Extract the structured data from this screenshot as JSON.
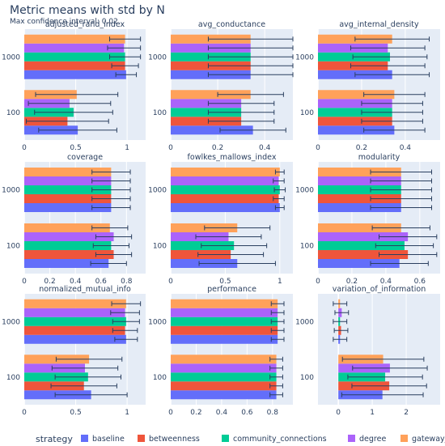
{
  "title": "Metric means with std by N",
  "subtitle": "Max confidence interval: 0.02",
  "legend_title": "strategy",
  "colors": {
    "baseline": "#636efa",
    "betweenness": "#ef553b",
    "community_connections": "#00cc96",
    "degree": "#ab63fa",
    "gateway_probability": "#ffa15a",
    "panel_bg": "#e5ecf6",
    "grid": "#ffffff",
    "text": "#2a3f5f"
  },
  "chart_data": {
    "type": "bar",
    "orientation": "horizontal",
    "categories": [
      "100",
      "1000"
    ],
    "series_names": [
      "baseline",
      "betweenness",
      "community_connections",
      "degree",
      "gateway_probability"
    ],
    "legend_position": "bottom",
    "grid": true,
    "panels": [
      {
        "title": "adjusted_rand_index",
        "xlim": [
          0,
          1.18
        ],
        "xticks": [
          0,
          0.5,
          1
        ],
        "xtick_labels": [
          "0",
          "0.5",
          "1"
        ],
        "values": {
          "100": [
            0.52,
            0.42,
            0.48,
            0.44,
            0.51
          ],
          "1000": [
            0.99,
            0.98,
            0.98,
            0.97,
            0.98
          ]
        },
        "errors": {
          "100": [
            0.38,
            0.4,
            0.38,
            0.4,
            0.4
          ],
          "1000": [
            0.1,
            0.13,
            0.15,
            0.16,
            0.15
          ]
        }
      },
      {
        "title": "avg_conductance",
        "xlim": [
          0,
          0.52
        ],
        "xticks": [
          0,
          0.2,
          0.4
        ],
        "xtick_labels": [
          "0",
          "0.2",
          "0.4"
        ],
        "values": {
          "100": [
            0.35,
            0.3,
            0.3,
            0.3,
            0.34
          ],
          "1000": [
            0.34,
            0.34,
            0.34,
            0.34,
            0.34
          ]
        },
        "errors": {
          "100": [
            0.14,
            0.14,
            0.14,
            0.14,
            0.14
          ],
          "1000": [
            0.18,
            0.18,
            0.18,
            0.18,
            0.18
          ]
        }
      },
      {
        "title": "avg_internal_density",
        "xlim": [
          0,
          0.56
        ],
        "xticks": [
          0,
          0.2,
          0.4
        ],
        "xtick_labels": [
          "0",
          "0.2",
          "0.4"
        ],
        "values": {
          "100": [
            0.35,
            0.34,
            0.34,
            0.34,
            0.35
          ],
          "1000": [
            0.34,
            0.32,
            0.33,
            0.32,
            0.34
          ]
        },
        "errors": {
          "100": [
            0.14,
            0.14,
            0.14,
            0.14,
            0.14
          ],
          "1000": [
            0.17,
            0.17,
            0.17,
            0.17,
            0.17
          ]
        }
      },
      {
        "title": "coverage",
        "xlim": [
          0,
          0.95
        ],
        "xticks": [
          0,
          0.2,
          0.4,
          0.6,
          0.8
        ],
        "xtick_labels": [
          "0",
          "0.2",
          "0.4",
          "0.6",
          "0.8"
        ],
        "values": {
          "100": [
            0.66,
            0.7,
            0.68,
            0.7,
            0.67
          ],
          "1000": [
            0.68,
            0.68,
            0.68,
            0.68,
            0.68
          ]
        },
        "errors": {
          "100": [
            0.14,
            0.14,
            0.14,
            0.14,
            0.14
          ],
          "1000": [
            0.15,
            0.15,
            0.15,
            0.15,
            0.15
          ]
        }
      },
      {
        "title": "fowlkes_mallows_index",
        "xlim": [
          0,
          1.12
        ],
        "xticks": [
          0,
          0.5,
          1
        ],
        "xtick_labels": [
          "0",
          "0.5",
          "1"
        ],
        "values": {
          "100": [
            0.61,
            0.55,
            0.58,
            0.53,
            0.61
          ],
          "1000": [
            1.0,
            0.99,
            1.0,
            0.99,
            1.0
          ]
        },
        "errors": {
          "100": [
            0.35,
            0.3,
            0.3,
            0.3,
            0.3
          ],
          "1000": [
            0.04,
            0.05,
            0.05,
            0.05,
            0.04
          ]
        }
      },
      {
        "title": "modularity",
        "xlim": [
          0,
          0.72
        ],
        "xticks": [
          0,
          0.2,
          0.4,
          0.6
        ],
        "xtick_labels": [
          "0",
          "0.2",
          "0.4",
          "0.6"
        ],
        "values": {
          "100": [
            0.48,
            0.53,
            0.51,
            0.53,
            0.49
          ],
          "1000": [
            0.49,
            0.49,
            0.49,
            0.49,
            0.49
          ]
        },
        "errors": {
          "100": [
            0.17,
            0.17,
            0.17,
            0.17,
            0.17
          ],
          "1000": [
            0.18,
            0.18,
            0.18,
            0.18,
            0.18
          ]
        }
      },
      {
        "title": "normalized_mutual_info",
        "xlim": [
          0,
          1.18
        ],
        "xticks": [
          0,
          0.5,
          1
        ],
        "xtick_labels": [
          "0",
          "0.5",
          "1"
        ],
        "values": {
          "100": [
            0.65,
            0.58,
            0.62,
            0.59,
            0.63
          ],
          "1000": [
            0.99,
            0.98,
            0.99,
            0.98,
            0.99
          ]
        },
        "errors": {
          "100": [
            0.35,
            0.32,
            0.32,
            0.32,
            0.32
          ],
          "1000": [
            0.11,
            0.12,
            0.13,
            0.14,
            0.14
          ]
        }
      },
      {
        "title": "performance",
        "xlim": [
          0,
          0.96
        ],
        "xticks": [
          0,
          0.2,
          0.4,
          0.6,
          0.8
        ],
        "xtick_labels": [
          "0",
          "0.2",
          "0.4",
          "0.6",
          "0.8"
        ],
        "values": {
          "100": [
            0.83,
            0.83,
            0.83,
            0.83,
            0.83
          ],
          "1000": [
            0.84,
            0.84,
            0.84,
            0.84,
            0.84
          ]
        },
        "errors": {
          "100": [
            0.05,
            0.05,
            0.05,
            0.05,
            0.05
          ],
          "1000": [
            0.05,
            0.05,
            0.05,
            0.05,
            0.05
          ]
        }
      },
      {
        "title": "variation_of_information",
        "xlim": [
          -0.6,
          3.0
        ],
        "xticks": [
          0,
          1,
          2
        ],
        "xtick_labels": [
          "0",
          "1",
          "2"
        ],
        "values": {
          "100": [
            1.3,
            1.5,
            1.38,
            1.52,
            1.32
          ],
          "1000": [
            0.05,
            0.08,
            0.05,
            0.1,
            0.05
          ]
        },
        "errors": {
          "100": [
            1.2,
            1.1,
            1.1,
            1.1,
            1.2
          ],
          "1000": [
            0.2,
            0.2,
            0.2,
            0.2,
            0.2
          ]
        }
      }
    ]
  }
}
